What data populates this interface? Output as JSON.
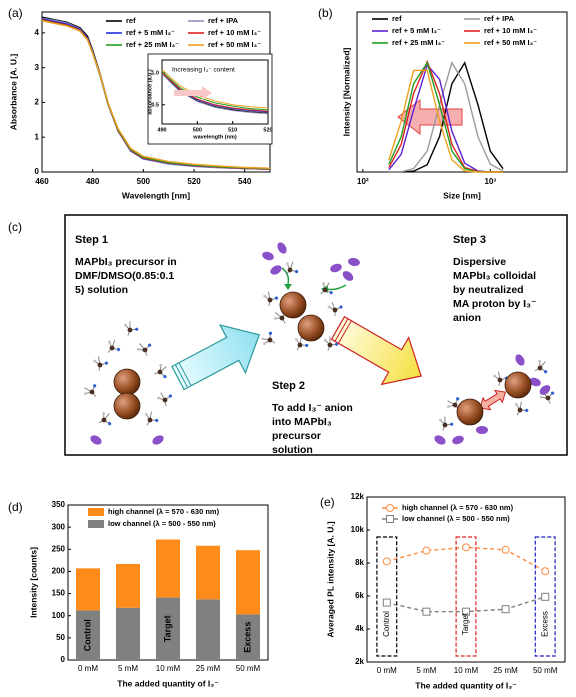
{
  "chart_data": [
    {
      "panel_label": "(a)",
      "type": "line",
      "x_label": "Wavelength [nm]",
      "y_label": "Absorbance [A. U.]",
      "xlim": [
        460,
        550
      ],
      "ylim": [
        0,
        4.6
      ],
      "xticks": [
        460,
        480,
        500,
        520,
        540
      ],
      "yticks": [
        0,
        1,
        2,
        3,
        4
      ],
      "legend": "top-right",
      "legend_columns": 2,
      "x": [
        460,
        465,
        470,
        475,
        478,
        480,
        483,
        486,
        490,
        495,
        500,
        510,
        520,
        530,
        540,
        550
      ],
      "series": [
        {
          "name": "ref",
          "color": "#000000",
          "values": [
            4.45,
            4.38,
            4.3,
            4.15,
            3.9,
            3.5,
            2.8,
            2.0,
            1.2,
            0.6,
            0.38,
            0.24,
            0.17,
            0.13,
            0.1,
            0.08
          ]
        },
        {
          "name": "ref + IPA",
          "color": "#8f8fb8",
          "values": [
            4.42,
            4.36,
            4.28,
            4.12,
            3.85,
            3.45,
            2.75,
            1.95,
            1.17,
            0.6,
            0.37,
            0.23,
            0.16,
            0.12,
            0.1,
            0.08
          ]
        },
        {
          "name": "ref + 5 mM I₃⁻",
          "color": "#1f2fe0",
          "values": [
            4.4,
            4.33,
            4.25,
            4.1,
            3.85,
            3.45,
            2.78,
            1.98,
            1.2,
            0.62,
            0.39,
            0.25,
            0.18,
            0.14,
            0.11,
            0.09
          ]
        },
        {
          "name": "ref + 10 mM I₃⁻",
          "color": "#e02020",
          "values": [
            4.38,
            4.3,
            4.22,
            4.08,
            3.82,
            3.43,
            2.76,
            1.97,
            1.2,
            0.63,
            0.4,
            0.26,
            0.19,
            0.14,
            0.11,
            0.09
          ]
        },
        {
          "name": "ref + 25 mM I₃⁻",
          "color": "#20a020",
          "values": [
            4.36,
            4.28,
            4.2,
            4.06,
            3.8,
            3.42,
            2.76,
            1.98,
            1.22,
            0.65,
            0.42,
            0.27,
            0.2,
            0.15,
            0.12,
            0.1
          ]
        },
        {
          "name": "ref + 50 mM I₃⁻",
          "color": "#f0a020",
          "values": [
            4.35,
            4.27,
            4.2,
            4.05,
            3.8,
            3.42,
            2.78,
            2.0,
            1.25,
            0.68,
            0.45,
            0.3,
            0.22,
            0.17,
            0.13,
            0.11
          ]
        }
      ]
    },
    {
      "type": "line",
      "x_label": "wavelength (nm)",
      "y_label": "absorbance (a.u.)",
      "xlim": [
        490,
        520
      ],
      "ylim": [
        0.2,
        1.2
      ],
      "xticks": [
        490,
        500,
        510,
        520
      ],
      "yticks": [
        0.5,
        {
          "value": 1,
          "label": "1.0"
        }
      ],
      "x": [
        490,
        495,
        500,
        505,
        510,
        515,
        520
      ],
      "annotations": [
        {
          "text": "Increasing I₃⁻ content",
          "color": "#e8303a"
        }
      ],
      "series": [
        {
          "color": "#000000",
          "values": [
            1.0,
            0.72,
            0.56,
            0.47,
            0.42,
            0.39,
            0.37
          ]
        },
        {
          "color": "#8f8fb8",
          "values": [
            0.98,
            0.71,
            0.55,
            0.46,
            0.41,
            0.38,
            0.36
          ]
        },
        {
          "color": "#1f2fe0",
          "values": [
            1.0,
            0.74,
            0.58,
            0.49,
            0.44,
            0.41,
            0.39
          ]
        },
        {
          "color": "#e02020",
          "values": [
            1.0,
            0.75,
            0.59,
            0.5,
            0.45,
            0.42,
            0.4
          ]
        },
        {
          "color": "#20a020",
          "values": [
            1.02,
            0.77,
            0.62,
            0.53,
            0.48,
            0.44,
            0.42
          ]
        },
        {
          "color": "#f0a020",
          "values": [
            1.05,
            0.8,
            0.65,
            0.56,
            0.5,
            0.47,
            0.45
          ]
        }
      ]
    },
    {
      "panel_label": "(b)",
      "type": "line",
      "xscale": "log",
      "x_label": "Size [nm]",
      "y_label": "Intensity  [Normalized]",
      "xlim": [
        90,
        4000
      ],
      "ylim": [
        0,
        1.45
      ],
      "xticks": [
        {
          "value": 100,
          "label": "10²"
        },
        {
          "value": 1000,
          "label": "10³"
        }
      ],
      "legend": "top",
      "legend_columns": 2,
      "x": [
        160,
        200,
        250,
        320,
        400,
        500,
        630,
        800,
        1000,
        1260
      ],
      "series": [
        {
          "name": "ref",
          "color": "#000000",
          "values": [
            0,
            0,
            0.007,
            0.066,
            0.32,
            0.8,
            0.99,
            0.61,
            0.19,
            0.03
          ]
        },
        {
          "name": "ref + IPA",
          "color": "#9a9a9a",
          "values": [
            0,
            0.002,
            0.03,
            0.19,
            0.61,
            0.99,
            0.8,
            0.32,
            0.07,
            0.01
          ]
        },
        {
          "name": "ref + 5 mM I₃⁻",
          "color": "#5a20d8",
          "values": [
            0.02,
            0.16,
            0.56,
            0.97,
            0.84,
            0.37,
            0.08,
            0.009,
            0,
            0
          ]
        },
        {
          "name": "ref + 10 mM I₃⁻",
          "color": "#e02020",
          "values": [
            0.04,
            0.25,
            0.71,
            1.0,
            0.71,
            0.25,
            0.04,
            0.004,
            0,
            0
          ]
        },
        {
          "name": "ref + 25 mM I₃⁻",
          "color": "#20a020",
          "values": [
            0.07,
            0.32,
            0.8,
            0.99,
            0.61,
            0.19,
            0.03,
            0,
            0,
            0
          ]
        },
        {
          "name": "ref + 50 mM I₃⁻",
          "color": "#f0a020",
          "values": [
            0.11,
            0.46,
            0.92,
            0.92,
            0.46,
            0.11,
            0.01,
            0,
            0,
            0
          ]
        }
      ]
    },
    {
      "panel_label": "(d)",
      "type": "bar",
      "stacked": true,
      "x_label": "The added quantity of I₃⁻",
      "y_label": "Intensity [counts]",
      "categories": [
        "0 mM",
        "5 mM",
        "10 mM",
        "25 mM",
        "50 mM"
      ],
      "ylim": [
        0,
        350
      ],
      "yticks": [
        0,
        50,
        100,
        150,
        200,
        250,
        300,
        350
      ],
      "legend": "top-left",
      "series": [
        {
          "name": "high channel (λ = 570 - 630 nm)",
          "color": "#ff8c1a",
          "values": [
            95,
            99,
            131,
            121,
            145
          ]
        },
        {
          "name": "low channel (λ = 500 - 550 nm)",
          "color": "#808080",
          "values": [
            112,
            118,
            141,
            137,
            103
          ]
        }
      ],
      "annotations": [
        {
          "text": "Control",
          "category": "0 mM",
          "color": "#ffffff"
        },
        {
          "text": "Target",
          "category": "10 mM",
          "color": "#f0a020"
        },
        {
          "text": "Excess",
          "category": "50 mM",
          "color": "#2020e0"
        }
      ]
    },
    {
      "panel_label": "(e)",
      "type": "line",
      "x_label": "The added quantity of I₃⁻",
      "y_label": "Averaged PL intensity  [A. U.]",
      "categories": [
        "0 mM",
        "5 mM",
        "10 mM",
        "25 mM",
        "50 mM"
      ],
      "ylim": [
        2000,
        12000
      ],
      "yticks": [
        {
          "value": 2000,
          "label": "2k"
        },
        {
          "value": 4000,
          "label": "4k"
        },
        {
          "value": 6000,
          "label": "6k"
        },
        {
          "value": 8000,
          "label": "8k"
        },
        {
          "value": 10000,
          "label": "10k"
        },
        {
          "value": 12000,
          "label": "12k"
        }
      ],
      "legend": "top-left",
      "series": [
        {
          "name": "high channel (λ = 570 - 630 nm)",
          "color": "#ff8c40",
          "marker": "circle",
          "dash": true,
          "values": [
            8100,
            8750,
            8950,
            8800,
            7500
          ]
        },
        {
          "name": "low channel (λ = 500 - 550 nm)",
          "color": "#808080",
          "marker": "square",
          "dash": true,
          "values": [
            5600,
            5050,
            5050,
            5200,
            5950
          ]
        }
      ],
      "annotations": [
        {
          "text": "Control",
          "category": "0 mM",
          "color": "#000000"
        },
        {
          "text": "Target",
          "category": "10 mM",
          "color": "#e02020"
        },
        {
          "text": "Excess",
          "category": "50 mM",
          "color": "#2020c0"
        }
      ]
    }
  ],
  "diagram": {
    "panel_label": "(c)",
    "steps": [
      {
        "title": "Step 1",
        "color": "#1f2fc8",
        "lines": [
          "MAPbI₃ precursor in",
          "DMF/DMSO(0.85:0.1",
          "5) solution"
        ]
      },
      {
        "title": "Step 2",
        "color": "#20a040",
        "lines": [
          "To add I₃⁻ anion",
          "into MAPbI₃",
          "precursor",
          "solution"
        ]
      },
      {
        "title": "Step 3",
        "color": "#d82020",
        "lines": [
          "Dispersive",
          "MAPbI₃ colloidal",
          "by neutralized",
          "MA proton by I₃⁻",
          "anion"
        ]
      }
    ]
  }
}
